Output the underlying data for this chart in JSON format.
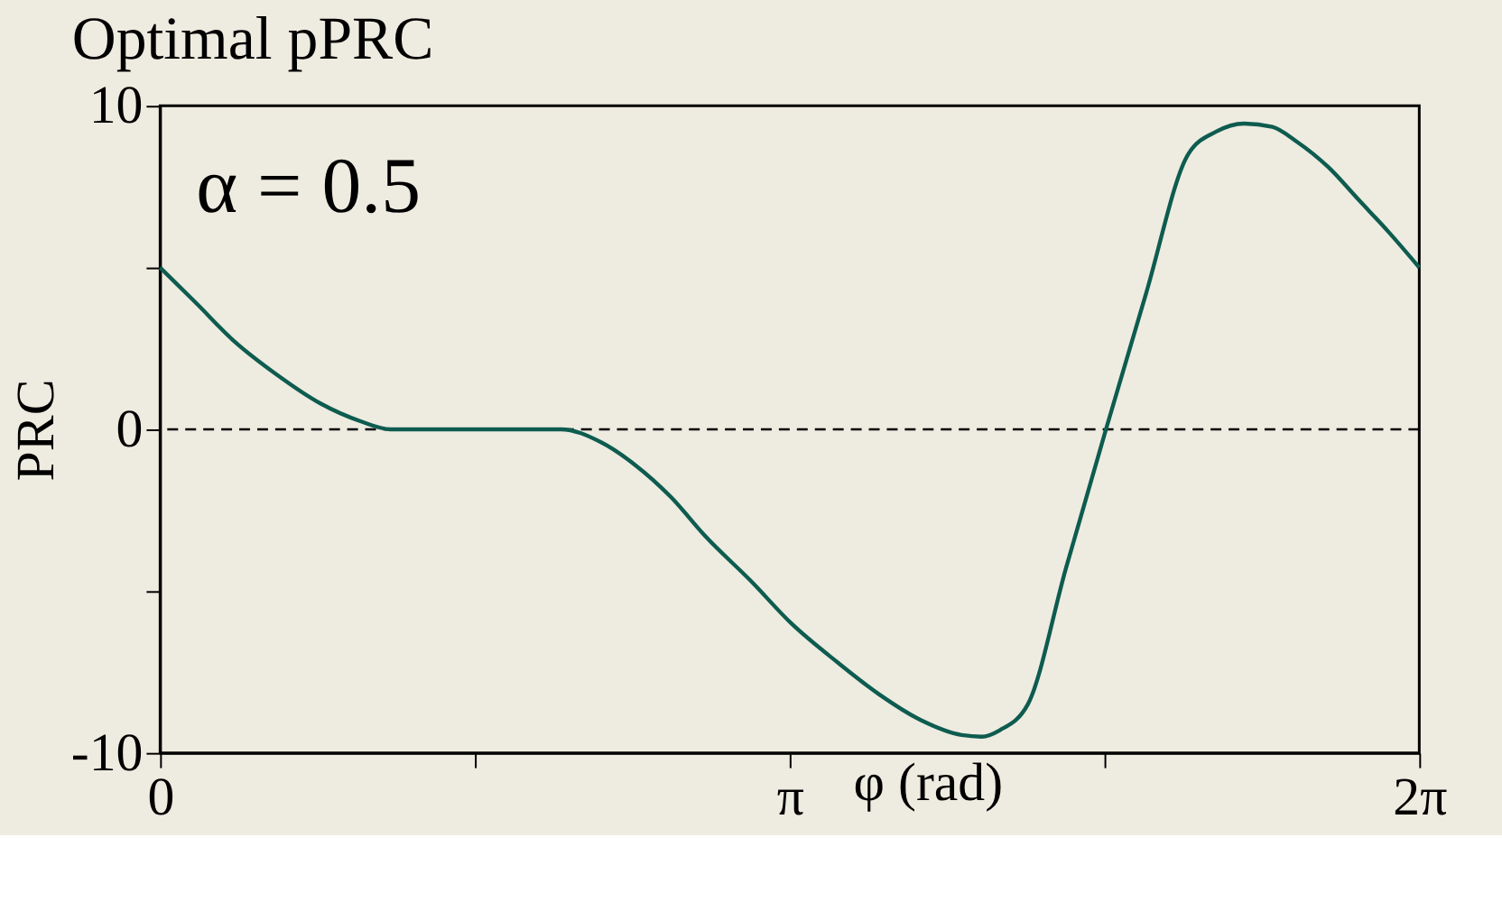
{
  "chart_data": {
    "type": "line",
    "title": "Optimal pPRC",
    "xlabel": "φ (rad)",
    "ylabel": "PRC",
    "annotations": [
      "α = 0.5"
    ],
    "x": [
      0,
      0.18,
      0.365,
      0.58,
      0.8,
      1.0,
      1.15,
      1.6,
      2.0,
      2.2,
      2.37,
      2.55,
      2.72,
      2.95,
      3.15,
      3.38,
      3.59,
      3.8,
      4.0,
      4.1,
      4.19,
      4.33,
      4.52,
      4.72,
      4.92,
      5.13,
      5.27,
      5.41,
      5.55,
      5.67,
      5.83,
      5.98,
      6.13,
      6.2832
    ],
    "series": [
      {
        "color": "#0d5c4f",
        "values": [
          5,
          3.9,
          2.75,
          1.7,
          0.8,
          0.25,
          0,
          0,
          0,
          -0.4,
          -1.1,
          -2.1,
          -3.3,
          -4.7,
          -6.0,
          -7.2,
          -8.2,
          -9.0,
          -9.45,
          -9.5,
          -9.3,
          -8.5,
          -4.3,
          0,
          4.2,
          8.5,
          9.2,
          9.45,
          9.35,
          8.9,
          8.1,
          7.1,
          6.1,
          5
        ]
      }
    ],
    "xlim": [
      0,
      6.2832
    ],
    "ylim": [
      -10,
      10
    ],
    "xticks": [
      {
        "value": 0,
        "label": "0"
      },
      {
        "value": 1.5708,
        "label": null
      },
      {
        "value": 3.1416,
        "label": "π"
      },
      {
        "value": 4.7124,
        "label": null
      },
      {
        "value": 6.2832,
        "label": "2π"
      }
    ],
    "yticks": [
      10,
      {
        "value": 5,
        "label": null
      },
      0,
      {
        "value": -5,
        "label": null
      },
      -10
    ],
    "ref_lines": [
      {
        "axis": "y",
        "value": 0,
        "color": "#000000",
        "line_style": "dashed"
      }
    ],
    "grid": false,
    "marker": "none",
    "line_style": "solid"
  }
}
